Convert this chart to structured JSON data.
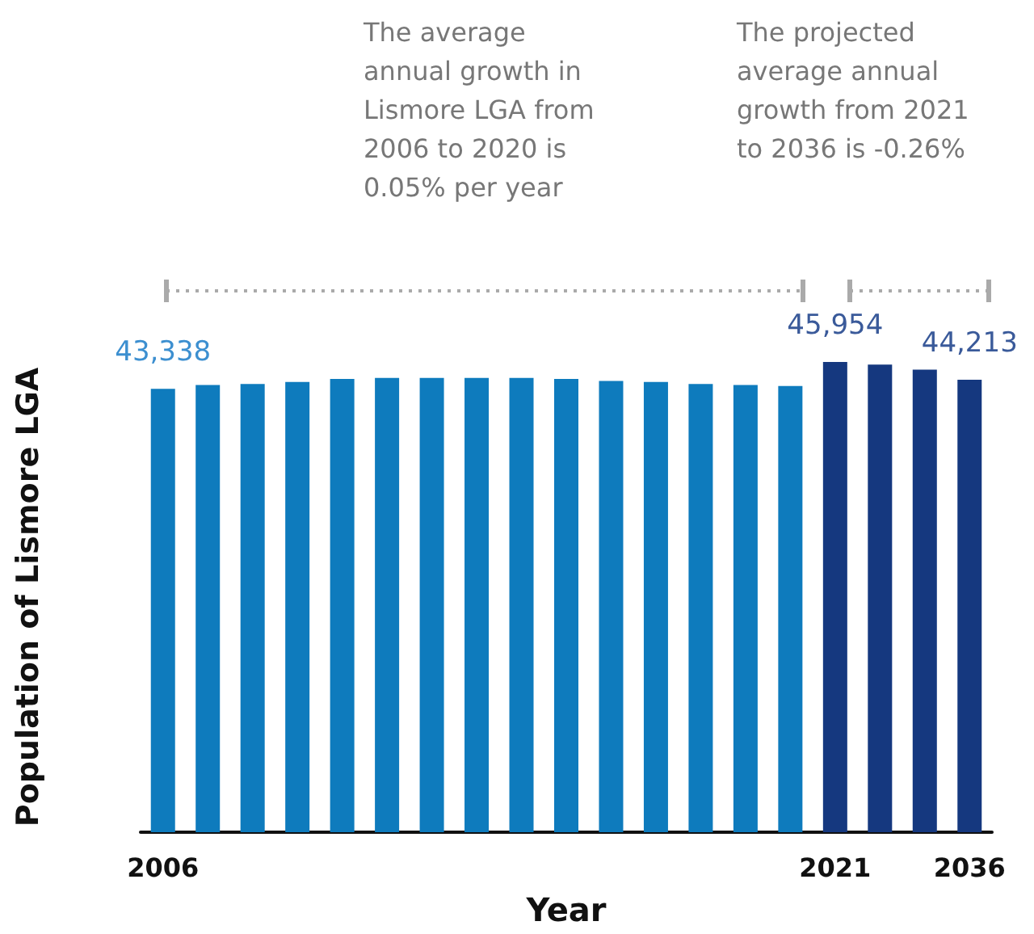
{
  "chart_data": {
    "type": "bar",
    "xlabel": "Year",
    "ylabel": "Population of Lismore LGA",
    "categories": [
      "2006",
      null,
      null,
      null,
      null,
      null,
      null,
      null,
      null,
      null,
      null,
      null,
      null,
      null,
      null,
      "2021",
      null,
      null,
      "2036"
    ],
    "values": [
      43338,
      43700,
      43800,
      44000,
      44300,
      44400,
      44400,
      44400,
      44400,
      44300,
      44100,
      44000,
      43800,
      43700,
      43600,
      45954,
      45700,
      45200,
      44213
    ],
    "colors": [
      "#0e7bbd",
      "#0e7bbd",
      "#0e7bbd",
      "#0e7bbd",
      "#0e7bbd",
      "#0e7bbd",
      "#0e7bbd",
      "#0e7bbd",
      "#0e7bbd",
      "#0e7bbd",
      "#0e7bbd",
      "#0e7bbd",
      "#0e7bbd",
      "#0e7bbd",
      "#0e7bbd",
      "#15387f",
      "#15387f",
      "#15387f",
      "#15387f"
    ],
    "value_labels": [
      "43,338",
      null,
      null,
      null,
      null,
      null,
      null,
      null,
      null,
      null,
      null,
      null,
      null,
      null,
      null,
      "45,954",
      null,
      null,
      "44,213"
    ],
    "annotations": [
      "The average annual growth in Lismore LGA from 2006 to 2020 is 0.05% per year",
      "The projected average annual growth from 2021 to 2036 is -0.26%"
    ],
    "grid": false
  }
}
